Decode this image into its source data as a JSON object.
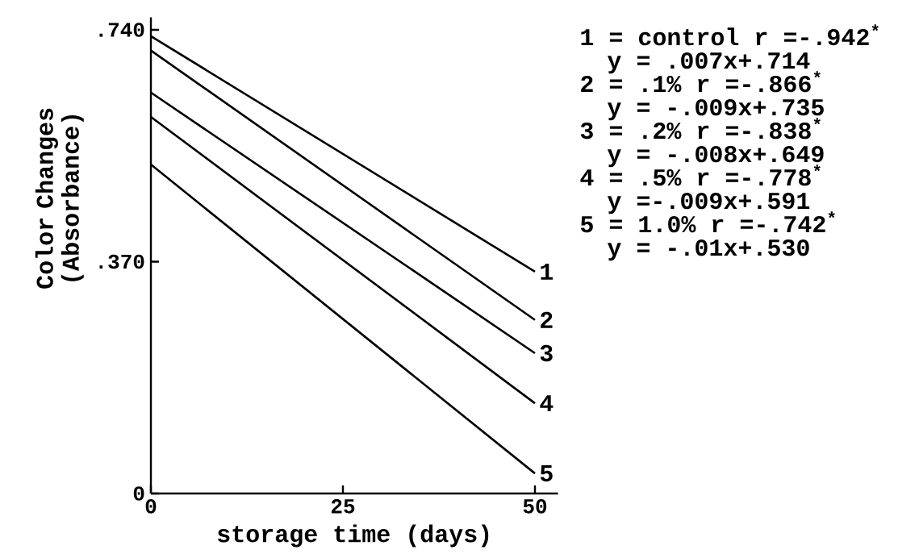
{
  "chart_data": {
    "type": "line",
    "xlabel": "storage time (days)",
    "ylabel": "Color Changes (Absorbance)",
    "xlim": [
      0,
      53
    ],
    "ylim": [
      0,
      0.76
    ],
    "xticks": [
      0,
      25,
      50
    ],
    "yticks": [
      {
        "value": 0,
        "label": "0"
      },
      {
        "value": 0.37,
        "label": ".370"
      },
      {
        "value": 0.74,
        "label": ".740"
      }
    ],
    "x": [
      0,
      50
    ],
    "series": [
      {
        "name": "1",
        "color": "#000000",
        "values": [
          0.73,
          0.354
        ]
      },
      {
        "name": "2",
        "color": "#000000",
        "values": [
          0.707,
          0.277
        ]
      },
      {
        "name": "3",
        "color": "#000000",
        "values": [
          0.64,
          0.224
        ]
      },
      {
        "name": "4",
        "color": "#000000",
        "values": [
          0.601,
          0.144
        ]
      },
      {
        "name": "5",
        "color": "#000000",
        "values": [
          0.525,
          0.032
        ]
      }
    ],
    "annotations": [
      "1 = control  r =-.942$^{*}$",
      "y = .007x+.714",
      "2 = .1%  r =-.866$^{*}$",
      "y = -.009x+.735",
      "3 = .2%  r =-.838$^{*}$",
      "y = -.008x+.649",
      "4 = .5%  r =-.778$^{*}$",
      "y =-.009x+.591",
      "5 = 1.0%  r =-.742$^{*}$",
      "y = -.01x+.530"
    ]
  }
}
